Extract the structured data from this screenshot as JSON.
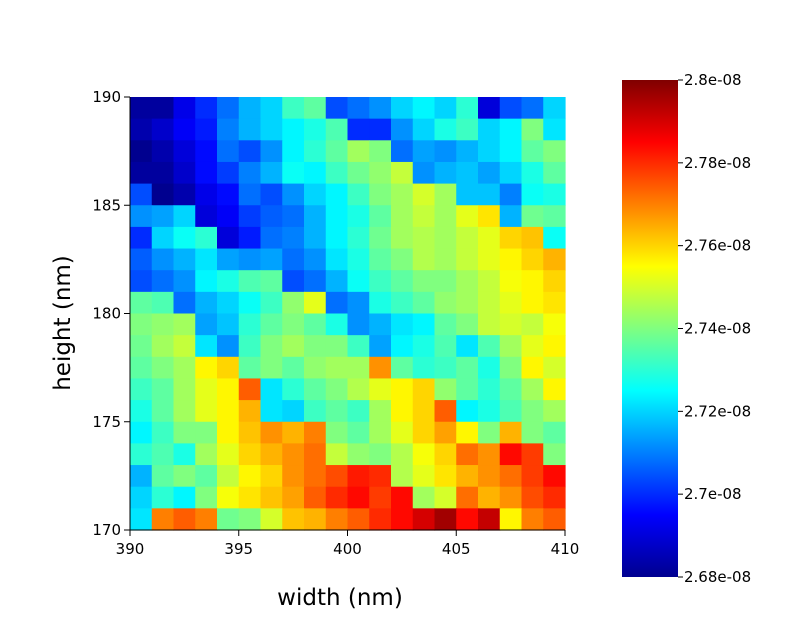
{
  "chart_data": {
    "type": "heatmap",
    "title": "",
    "xlabel": "width (nm)",
    "ylabel": "height (nm)",
    "xlim": [
      390,
      410
    ],
    "ylim": [
      170,
      190
    ],
    "x_ticks": [
      390,
      395,
      400,
      405,
      410
    ],
    "y_ticks": [
      170,
      175,
      180,
      185,
      190
    ],
    "grid": false,
    "colormap": "jet",
    "colorbar": {
      "min": 2.68e-08,
      "max": 2.8e-08,
      "ticks": [
        2.68e-08,
        2.7e-08,
        2.72e-08,
        2.74e-08,
        2.76e-08,
        2.78e-08,
        2.8e-08
      ],
      "tick_labels": [
        "2.68e-08",
        "2.7e-08",
        "2.72e-08",
        "2.74e-08",
        "2.76e-08",
        "2.78e-08",
        "2.8e-08"
      ]
    },
    "grid_size": [
      20,
      20
    ],
    "rows_top_to_bottom": [
      [
        2.682,
        2.682,
        2.692,
        2.7,
        2.708,
        2.716,
        2.72,
        2.732,
        2.736,
        2.704,
        2.708,
        2.712,
        2.72,
        2.724,
        2.72,
        2.73,
        2.69,
        2.704,
        2.708,
        2.72
      ],
      [
        2.684,
        2.688,
        2.694,
        2.698,
        2.71,
        2.716,
        2.72,
        2.724,
        2.728,
        2.734,
        2.7,
        2.7,
        2.712,
        2.72,
        2.728,
        2.732,
        2.72,
        2.724,
        2.74,
        2.722
      ],
      [
        2.68,
        2.684,
        2.69,
        2.696,
        2.708,
        2.704,
        2.712,
        2.724,
        2.73,
        2.736,
        2.744,
        2.74,
        2.708,
        2.714,
        2.712,
        2.716,
        2.72,
        2.724,
        2.736,
        2.74
      ],
      [
        2.682,
        2.682,
        2.688,
        2.696,
        2.702,
        2.71,
        2.716,
        2.726,
        2.724,
        2.732,
        2.738,
        2.742,
        2.748,
        2.712,
        2.716,
        2.718,
        2.714,
        2.72,
        2.728,
        2.736
      ],
      [
        2.704,
        2.68,
        2.684,
        2.692,
        2.696,
        2.708,
        2.704,
        2.712,
        2.72,
        2.724,
        2.732,
        2.74,
        2.744,
        2.75,
        2.744,
        2.718,
        2.718,
        2.71,
        2.726,
        2.728
      ],
      [
        2.712,
        2.714,
        2.72,
        2.69,
        2.694,
        2.702,
        2.706,
        2.708,
        2.716,
        2.724,
        2.728,
        2.736,
        2.744,
        2.748,
        2.744,
        2.752,
        2.758,
        2.716,
        2.738,
        2.736
      ],
      [
        2.7,
        2.72,
        2.726,
        2.73,
        2.69,
        2.698,
        2.708,
        2.71,
        2.716,
        2.724,
        2.73,
        2.738,
        2.744,
        2.746,
        2.744,
        2.748,
        2.752,
        2.76,
        2.762,
        2.726
      ],
      [
        2.706,
        2.712,
        2.716,
        2.722,
        2.714,
        2.712,
        2.714,
        2.708,
        2.712,
        2.722,
        2.728,
        2.736,
        2.74,
        2.746,
        2.744,
        2.748,
        2.752,
        2.756,
        2.76,
        2.764
      ],
      [
        2.704,
        2.708,
        2.712,
        2.724,
        2.728,
        2.734,
        2.736,
        2.704,
        2.708,
        2.716,
        2.726,
        2.732,
        2.736,
        2.74,
        2.74,
        2.744,
        2.748,
        2.754,
        2.756,
        2.76
      ],
      [
        2.736,
        2.734,
        2.708,
        2.716,
        2.72,
        2.726,
        2.732,
        2.742,
        2.752,
        2.708,
        2.712,
        2.728,
        2.732,
        2.736,
        2.742,
        2.744,
        2.748,
        2.752,
        2.756,
        2.758
      ],
      [
        2.74,
        2.742,
        2.744,
        2.714,
        2.718,
        2.73,
        2.736,
        2.74,
        2.736,
        2.728,
        2.712,
        2.716,
        2.722,
        2.724,
        2.736,
        2.74,
        2.748,
        2.75,
        2.748,
        2.754
      ],
      [
        2.738,
        2.744,
        2.748,
        2.722,
        2.712,
        2.732,
        2.74,
        2.744,
        2.74,
        2.74,
        2.732,
        2.714,
        2.724,
        2.728,
        2.734,
        2.722,
        2.734,
        2.744,
        2.752,
        2.756
      ],
      [
        2.736,
        2.74,
        2.744,
        2.756,
        2.76,
        2.736,
        2.74,
        2.736,
        2.742,
        2.744,
        2.744,
        2.768,
        2.736,
        2.73,
        2.732,
        2.736,
        2.728,
        2.74,
        2.756,
        2.75
      ],
      [
        2.732,
        2.736,
        2.744,
        2.752,
        2.756,
        2.774,
        2.722,
        2.73,
        2.736,
        2.74,
        2.746,
        2.752,
        2.756,
        2.76,
        2.742,
        2.736,
        2.73,
        2.736,
        2.744,
        2.756
      ],
      [
        2.728,
        2.736,
        2.744,
        2.752,
        2.756,
        2.764,
        2.722,
        2.72,
        2.732,
        2.736,
        2.732,
        2.744,
        2.756,
        2.76,
        2.774,
        2.724,
        2.728,
        2.734,
        2.74,
        2.744
      ],
      [
        2.724,
        2.732,
        2.74,
        2.74,
        2.756,
        2.762,
        2.768,
        2.764,
        2.77,
        2.74,
        2.736,
        2.744,
        2.752,
        2.76,
        2.766,
        2.756,
        2.74,
        2.764,
        2.74,
        2.736
      ],
      [
        2.73,
        2.734,
        2.728,
        2.744,
        2.752,
        2.76,
        2.764,
        2.768,
        2.772,
        2.748,
        2.742,
        2.74,
        2.746,
        2.754,
        2.76,
        2.772,
        2.768,
        2.784,
        2.778,
        2.74
      ],
      [
        2.716,
        2.736,
        2.74,
        2.736,
        2.748,
        2.756,
        2.76,
        2.768,
        2.772,
        2.776,
        2.782,
        2.78,
        2.746,
        2.752,
        2.758,
        2.764,
        2.768,
        2.772,
        2.778,
        2.784
      ],
      [
        2.72,
        2.73,
        2.724,
        2.74,
        2.754,
        2.758,
        2.762,
        2.766,
        2.774,
        2.78,
        2.784,
        2.778,
        2.784,
        2.744,
        2.75,
        2.772,
        2.764,
        2.768,
        2.776,
        2.78
      ],
      [
        2.722,
        2.77,
        2.774,
        2.77,
        2.738,
        2.74,
        2.75,
        2.762,
        2.764,
        2.77,
        2.774,
        2.78,
        2.784,
        2.79,
        2.796,
        2.784,
        2.792,
        2.756,
        2.77,
        2.774
      ]
    ]
  }
}
